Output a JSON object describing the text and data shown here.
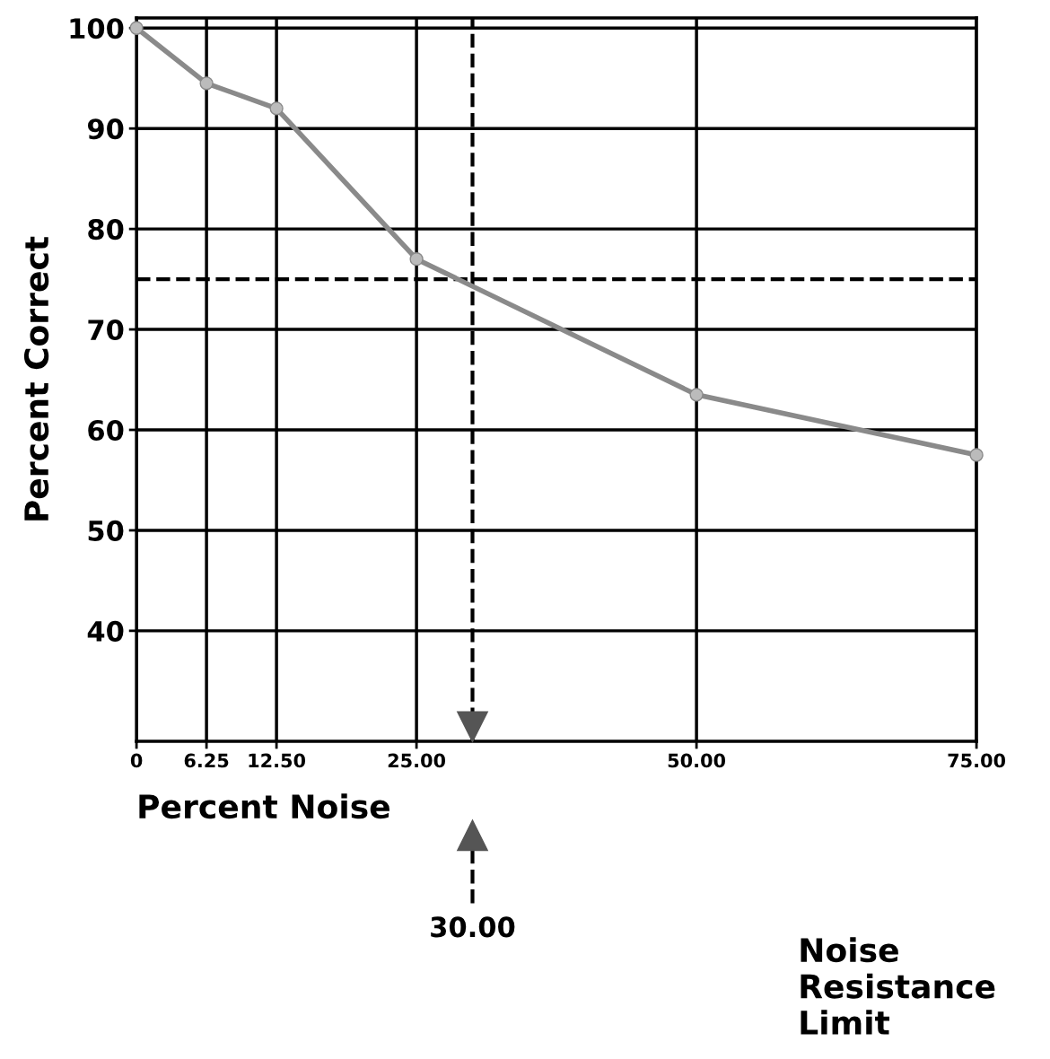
{
  "chart_data": {
    "type": "line",
    "xlabel": "Percent Noise",
    "ylabel": "Percent Correct",
    "x": [
      0,
      6.25,
      12.5,
      25,
      50,
      75
    ],
    "series": [
      {
        "color": "#8a8a8a",
        "values": [
          100,
          94.5,
          92,
          77,
          63.5,
          57.5
        ]
      }
    ],
    "xlim": [
      0,
      75
    ],
    "xticks": [
      0,
      6.25,
      {
        "value": 12.5,
        "label": "12.50"
      },
      {
        "value": 25,
        "label": "25.00"
      },
      {
        "value": 50,
        "label": "50.00"
      },
      {
        "value": 75,
        "label": "75.00"
      }
    ],
    "ylim": [
      29,
      101
    ],
    "yticks": [
      40,
      50,
      60,
      70,
      80,
      90,
      100
    ],
    "grid": true,
    "marker": "circle",
    "line_style": "solid",
    "ref_lines": [
      {
        "axis": "y",
        "value": 75,
        "line_style": "dashed"
      },
      {
        "axis": "x",
        "value": 30,
        "label": "30.00",
        "line_style": "dashed"
      }
    ],
    "annotations": [
      "Noise Resistance Limit"
    ]
  }
}
